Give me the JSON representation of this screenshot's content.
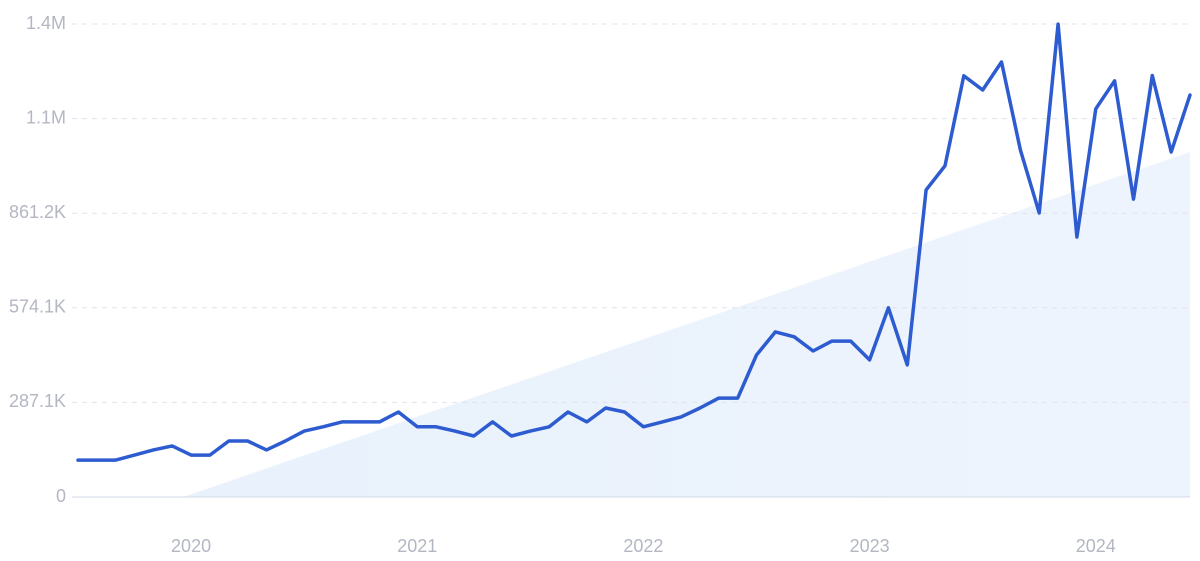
{
  "chart_data": {
    "type": "line",
    "categories": [
      null,
      null,
      null,
      null,
      null,
      null,
      "2020",
      null,
      null,
      null,
      null,
      null,
      null,
      null,
      null,
      null,
      null,
      null,
      "2021",
      null,
      null,
      null,
      null,
      null,
      null,
      null,
      null,
      null,
      null,
      null,
      "2022",
      null,
      null,
      null,
      null,
      null,
      null,
      null,
      null,
      null,
      null,
      null,
      "2023",
      null,
      null,
      null,
      null,
      null,
      null,
      null,
      null,
      null,
      null,
      null,
      "2024",
      null,
      null,
      null,
      null,
      null
    ],
    "values": [
      112000,
      112000,
      112000,
      127000,
      143000,
      155000,
      127000,
      127000,
      170000,
      170000,
      143000,
      170000,
      200000,
      213000,
      228000,
      228000,
      228000,
      258000,
      213000,
      213000,
      200000,
      185000,
      228000,
      185000,
      200000,
      213000,
      258000,
      228000,
      270000,
      258000,
      213000,
      228000,
      243000,
      270000,
      300000,
      300000,
      431000,
      501000,
      486000,
      443000,
      473000,
      473000,
      416000,
      574000,
      401000,
      932000,
      1005000,
      1278000,
      1235000,
      1320000,
      1053000,
      862000,
      1435000,
      789000,
      1178000,
      1263000,
      904000,
      1279000,
      1047000,
      1220000
    ],
    "color": "#2d5bd0",
    "ylim": [
      0,
      1435300
    ],
    "yticks": [
      0,
      {
        "value": 287100,
        "label": "287.1K"
      },
      {
        "value": 574100,
        "label": "574.1K"
      },
      {
        "value": 861200,
        "label": "861.2K"
      },
      {
        "value": 1148200,
        "label": "1.1M"
      },
      {
        "value": 1435300,
        "label": "1.4M"
      }
    ],
    "grid": true
  }
}
